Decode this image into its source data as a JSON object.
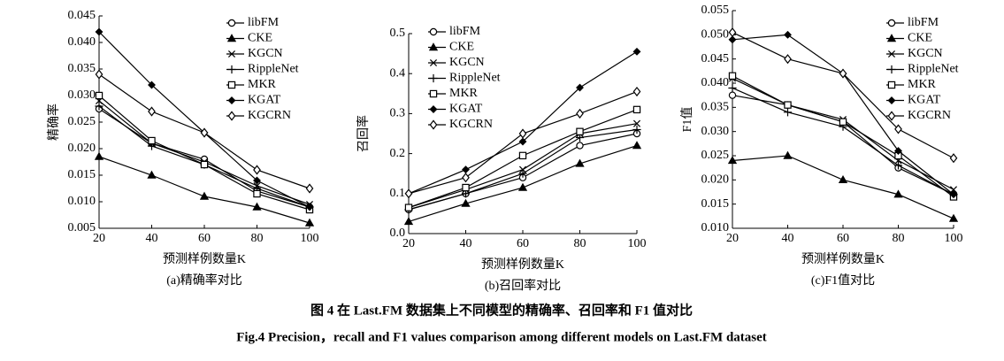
{
  "chart_data": [
    {
      "type": "line",
      "title": "(a)精确率对比",
      "xlabel": "预测样例数量K",
      "ylabel": "精确率",
      "color": "#000000",
      "x": [
        20,
        40,
        60,
        80,
        100
      ],
      "xlim": [
        20,
        100
      ],
      "xticks": [
        20,
        40,
        60,
        80,
        100
      ],
      "ylim": [
        0.005,
        0.045
      ],
      "yticks": [
        0.005,
        {
          "value": 0.01,
          "label": "0.010"
        },
        0.015,
        {
          "value": 0.02,
          "label": "0.020"
        },
        0.025,
        {
          "value": 0.03,
          "label": "0.030"
        },
        0.035,
        {
          "value": 0.04,
          "label": "0.040"
        },
        0.045
      ],
      "series": [
        {
          "name": "libFM",
          "values": [
            0.0275,
            0.021,
            0.018,
            0.012,
            0.009
          ]
        },
        {
          "name": "CKE",
          "values": [
            0.0185,
            0.015,
            0.011,
            0.009,
            0.006
          ]
        },
        {
          "name": "KGCN",
          "values": [
            0.029,
            0.021,
            0.0175,
            0.013,
            0.0095
          ]
        },
        {
          "name": "RippleNet",
          "values": [
            0.028,
            0.0205,
            0.017,
            0.0125,
            0.009
          ]
        },
        {
          "name": "MKR",
          "values": [
            0.03,
            0.0215,
            0.017,
            0.0115,
            0.0085
          ]
        },
        {
          "name": "KGAT",
          "values": [
            0.042,
            0.032,
            0.023,
            0.014,
            0.009
          ]
        },
        {
          "name": "KGCRN",
          "values": [
            0.034,
            0.027,
            0.023,
            0.016,
            0.0125
          ]
        }
      ]
    },
    {
      "type": "line",
      "title": "(b)召回率对比",
      "xlabel": "预测样例数量K",
      "ylabel": "召回率",
      "color": "#000000",
      "x": [
        20,
        40,
        60,
        80,
        100
      ],
      "xlim": [
        20,
        100
      ],
      "xticks": [
        20,
        40,
        60,
        80,
        100
      ],
      "ylim": [
        0,
        0.5
      ],
      "yticks": [
        {
          "value": 0,
          "label": "0.0"
        },
        0.1,
        0.2,
        0.3,
        0.4,
        0.5
      ],
      "series": [
        {
          "name": "libFM",
          "values": [
            0.06,
            0.1,
            0.14,
            0.22,
            0.25
          ]
        },
        {
          "name": "CKE",
          "values": [
            0.03,
            0.075,
            0.115,
            0.175,
            0.22
          ]
        },
        {
          "name": "KGCN",
          "values": [
            0.065,
            0.11,
            0.16,
            0.25,
            0.275
          ]
        },
        {
          "name": "RippleNet",
          "values": [
            0.06,
            0.1,
            0.15,
            0.24,
            0.26
          ]
        },
        {
          "name": "MKR",
          "values": [
            0.065,
            0.115,
            0.195,
            0.255,
            0.31
          ]
        },
        {
          "name": "KGAT",
          "values": [
            0.1,
            0.16,
            0.23,
            0.365,
            0.455
          ]
        },
        {
          "name": "KGCRN",
          "values": [
            0.1,
            0.14,
            0.25,
            0.3,
            0.355
          ]
        }
      ]
    },
    {
      "type": "line",
      "title": "(c)F1值对比",
      "xlabel": "预测样例数量K",
      "ylabel": "F1值",
      "color": "#000000",
      "x": [
        20,
        40,
        60,
        80,
        100
      ],
      "xlim": [
        20,
        100
      ],
      "xticks": [
        20,
        40,
        60,
        80,
        100
      ],
      "ylim": [
        0.01,
        0.055
      ],
      "yticks": [
        {
          "value": 0.01,
          "label": "0.010"
        },
        0.015,
        {
          "value": 0.02,
          "label": "0.020"
        },
        0.025,
        {
          "value": 0.03,
          "label": "0.030"
        },
        0.035,
        {
          "value": 0.04,
          "label": "0.040"
        },
        0.045,
        {
          "value": 0.05,
          "label": "0.050"
        },
        0.055
      ],
      "series": [
        {
          "name": "libFM",
          "values": [
            0.0375,
            0.0355,
            0.032,
            0.0225,
            0.017
          ]
        },
        {
          "name": "CKE",
          "values": [
            0.024,
            0.025,
            0.02,
            0.017,
            0.012
          ]
        },
        {
          "name": "KGCN",
          "values": [
            0.041,
            0.0355,
            0.0325,
            0.024,
            0.018
          ]
        },
        {
          "name": "RippleNet",
          "values": [
            0.039,
            0.034,
            0.031,
            0.023,
            0.017
          ]
        },
        {
          "name": "MKR",
          "values": [
            0.0415,
            0.0355,
            0.032,
            0.025,
            0.0165
          ]
        },
        {
          "name": "KGAT",
          "values": [
            0.049,
            0.05,
            0.042,
            0.026,
            0.017
          ]
        },
        {
          "name": "KGCRN",
          "values": [
            0.0505,
            0.045,
            0.042,
            0.0305,
            0.0245
          ]
        }
      ]
    }
  ],
  "caption": {
    "cn": "图 4   在 Last.FM 数据集上不同模型的精确率、召回率和 F1 值对比",
    "en": "Fig.4   Precision，recall and F1 values comparison among different models on Last.FM dataset"
  }
}
